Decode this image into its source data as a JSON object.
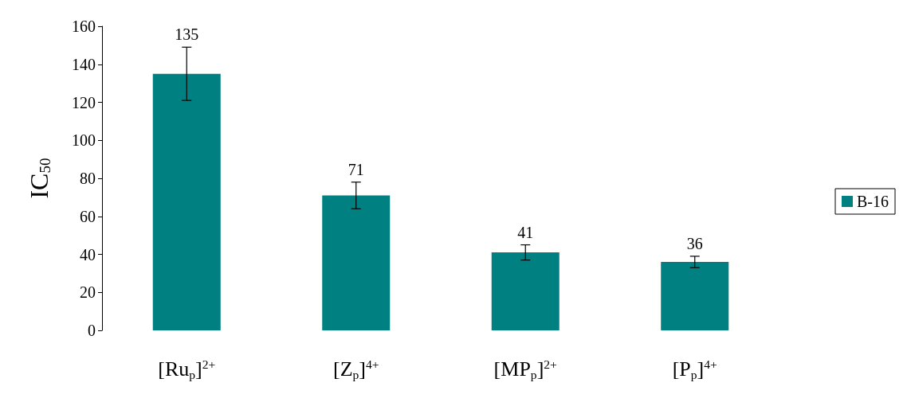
{
  "chart_data": {
    "type": "bar",
    "ylabel": "IC$_{50}$",
    "categories": [
      "[Ru$_{p}$]$^{2+}$",
      "[Z$_{p}$]$^{4+}$",
      "[MP$_{p}$]$^{2+}$",
      "[P$_{p}$]$^{4+}$"
    ],
    "series": [
      {
        "name": "B-16",
        "color": "#008080",
        "values": [
          135,
          71,
          41,
          36
        ],
        "errors": [
          14,
          7,
          4,
          3
        ]
      }
    ],
    "ylim": [
      0,
      160
    ],
    "yticks": [
      0,
      20,
      40,
      60,
      80,
      100,
      120,
      140,
      160
    ],
    "grid": false,
    "legend": "right",
    "data_labels": true
  }
}
